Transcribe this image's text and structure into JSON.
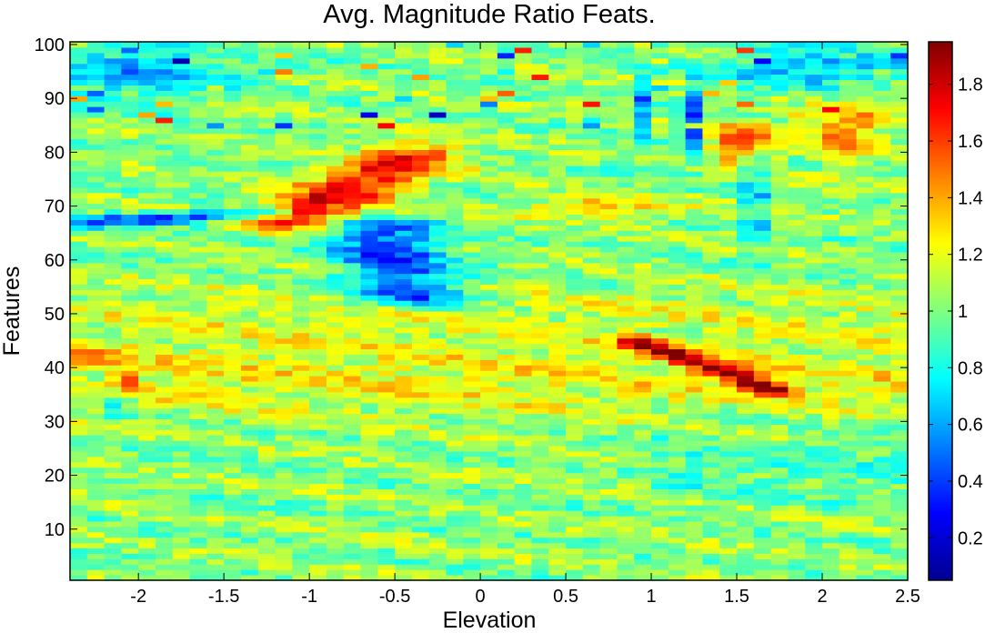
{
  "chart_data": {
    "type": "heatmap",
    "title": "Avg. Magnitude Ratio Feats.",
    "xlabel": "Elevation",
    "ylabel": "Features",
    "xlim": [
      -2.4,
      2.5
    ],
    "ylim": [
      0.5,
      100.5
    ],
    "x_ticks": [
      -2,
      -1.5,
      -1,
      -0.5,
      0,
      0.5,
      1,
      1.5,
      2,
      2.5
    ],
    "y_ticks": [
      10,
      20,
      30,
      40,
      50,
      60,
      70,
      80,
      90,
      100
    ],
    "colormap": "jet",
    "clim": [
      0.05,
      1.95
    ],
    "colorbar_ticks": [
      0.2,
      0.4,
      0.6,
      0.8,
      1,
      1.2,
      1.4,
      1.6,
      1.8
    ],
    "grid": false,
    "elevation_bins": 49,
    "feature_bins": 100,
    "value_structure": [
      {
        "region": "background",
        "elevation": [
          -2.4,
          2.5
        ],
        "features": [
          1,
          100
        ],
        "approx_value": 1.05
      },
      {
        "region": "warm band",
        "elevation": [
          -2.0,
          2.5
        ],
        "features": [
          30,
          45
        ],
        "approx_value": 1.25
      },
      {
        "region": "diagonal ridge high",
        "from": [
          -1.1,
          68
        ],
        "to": [
          -0.4,
          79
        ],
        "approx_value": 1.65
      },
      {
        "region": "diagonal ridge low",
        "from": [
          0.9,
          45
        ],
        "to": [
          1.7,
          36
        ],
        "approx_value": 1.75
      },
      {
        "region": "low band left",
        "elevation": [
          -2.3,
          -1.2
        ],
        "features": [
          66,
          69
        ],
        "approx_value": 0.4
      },
      {
        "region": "low streak",
        "from": [
          -0.65,
          66
        ],
        "to": [
          -0.4,
          53
        ],
        "approx_value": 0.3
      },
      {
        "region": "high cluster right",
        "elevation": [
          1.4,
          1.7
        ],
        "features": [
          78,
          86
        ],
        "approx_value": 1.8
      },
      {
        "region": "low column right",
        "elevation": [
          1.55,
          1.65
        ],
        "features": [
          65,
          98
        ],
        "approx_value": 0.3
      },
      {
        "region": "low column",
        "elevation": [
          1.2,
          1.3
        ],
        "features": [
          78,
          92
        ],
        "approx_value": 0.2
      },
      {
        "region": "spot high",
        "elevation": [
          -2.2,
          -2.0
        ],
        "features": [
          36,
          40
        ],
        "approx_value": 1.9
      },
      {
        "region": "top right low",
        "elevation": [
          1.9,
          2.1
        ],
        "features": [
          98,
          100
        ],
        "approx_value": 0.2
      }
    ]
  }
}
